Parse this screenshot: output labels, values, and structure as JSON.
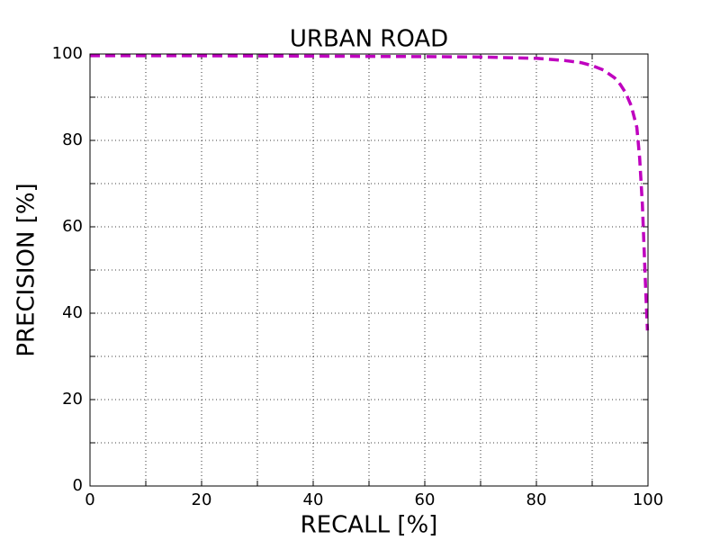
{
  "chart_data": {
    "type": "line",
    "title": "URBAN ROAD",
    "x_label": "RECALL [%]",
    "y_label": "PRECISION [%]",
    "x": [
      0,
      20,
      40,
      60,
      70,
      80,
      85,
      88,
      90,
      92,
      94,
      95,
      96,
      97,
      98,
      98.5,
      99,
      99.3,
      99.6,
      99.9
    ],
    "values": [
      99.6,
      99.6,
      99.5,
      99.4,
      99.3,
      99,
      98.5,
      98,
      97.3,
      96.3,
      94.5,
      93,
      91,
      88,
      83,
      76,
      65,
      55,
      45,
      36
    ],
    "color": "#bf00bf",
    "line_style": "dashed",
    "xlim": [
      0,
      100
    ],
    "ylim": [
      0,
      100
    ],
    "xticks": [
      0,
      20,
      40,
      60,
      80,
      100
    ],
    "yticks": [
      0,
      20,
      40,
      60,
      80,
      100
    ],
    "x_minor_ticks": [
      10,
      30,
      50,
      70,
      90
    ],
    "y_minor_ticks": [
      10,
      30,
      50,
      70,
      90
    ],
    "grid": true
  }
}
